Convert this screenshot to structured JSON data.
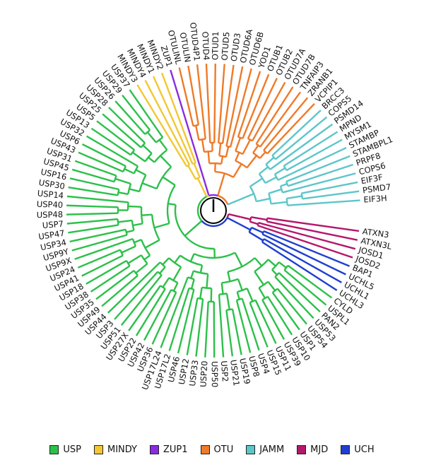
{
  "groups": [
    {
      "id": "USP",
      "label": "USP",
      "color": "#2cc04a"
    },
    {
      "id": "MINDY",
      "label": "MINDY",
      "color": "#f3c733"
    },
    {
      "id": "ZUP1",
      "label": "ZUP1",
      "color": "#8a2be2"
    },
    {
      "id": "OTU",
      "label": "OTU",
      "color": "#ef7a28"
    },
    {
      "id": "JAMM",
      "label": "JAMM",
      "color": "#5cc6c9"
    },
    {
      "id": "MJD",
      "label": "MJD",
      "color": "#b5176b"
    },
    {
      "id": "UCH",
      "label": "UCH",
      "color": "#1e3fd0"
    }
  ],
  "leaves": [
    {
      "name": "ATXN3",
      "group": "MJD"
    },
    {
      "name": "ATXN3L",
      "group": "MJD"
    },
    {
      "name": "JOSD1",
      "group": "MJD"
    },
    {
      "name": "JOSD2",
      "group": "MJD"
    },
    {
      "name": "BAP1",
      "group": "UCH"
    },
    {
      "name": "UCHL5",
      "group": "UCH"
    },
    {
      "name": "UCHL1",
      "group": "UCH"
    },
    {
      "name": "UCHL3",
      "group": "UCH"
    },
    {
      "name": "CYLD",
      "group": "USP"
    },
    {
      "name": "USPL1",
      "group": "USP"
    },
    {
      "name": "PAN2",
      "group": "USP"
    },
    {
      "name": "USP53",
      "group": "USP"
    },
    {
      "name": "USP54",
      "group": "USP"
    },
    {
      "name": "USP1",
      "group": "USP"
    },
    {
      "name": "USP10",
      "group": "USP"
    },
    {
      "name": "USP39",
      "group": "USP"
    },
    {
      "name": "USP11",
      "group": "USP"
    },
    {
      "name": "USP15",
      "group": "USP"
    },
    {
      "name": "USP4",
      "group": "USP"
    },
    {
      "name": "USP8",
      "group": "USP"
    },
    {
      "name": "USP19",
      "group": "USP"
    },
    {
      "name": "USP21",
      "group": "USP"
    },
    {
      "name": "USP2",
      "group": "USP"
    },
    {
      "name": "USP50",
      "group": "USP"
    },
    {
      "name": "USP20",
      "group": "USP"
    },
    {
      "name": "USP33",
      "group": "USP"
    },
    {
      "name": "USP12",
      "group": "USP"
    },
    {
      "name": "USP46",
      "group": "USP"
    },
    {
      "name": "USP17L2",
      "group": "USP"
    },
    {
      "name": "USP17L24",
      "group": "USP"
    },
    {
      "name": "USP36",
      "group": "USP"
    },
    {
      "name": "USP42",
      "group": "USP"
    },
    {
      "name": "USP22",
      "group": "USP"
    },
    {
      "name": "USP27X",
      "group": "USP"
    },
    {
      "name": "USP51",
      "group": "USP"
    },
    {
      "name": "USP3",
      "group": "USP"
    },
    {
      "name": "USP44",
      "group": "USP"
    },
    {
      "name": "USP49",
      "group": "USP"
    },
    {
      "name": "USP35",
      "group": "USP"
    },
    {
      "name": "USP38",
      "group": "USP"
    },
    {
      "name": "USP18",
      "group": "USP"
    },
    {
      "name": "USP41",
      "group": "USP"
    },
    {
      "name": "USP24",
      "group": "USP"
    },
    {
      "name": "USP9X",
      "group": "USP"
    },
    {
      "name": "USP9Y",
      "group": "USP"
    },
    {
      "name": "USP34",
      "group": "USP"
    },
    {
      "name": "USP47",
      "group": "USP"
    },
    {
      "name": "USP7",
      "group": "USP"
    },
    {
      "name": "USP48",
      "group": "USP"
    },
    {
      "name": "USP40",
      "group": "USP"
    },
    {
      "name": "USP14",
      "group": "USP"
    },
    {
      "name": "USP30",
      "group": "USP"
    },
    {
      "name": "USP16",
      "group": "USP"
    },
    {
      "name": "USP45",
      "group": "USP"
    },
    {
      "name": "USP31",
      "group": "USP"
    },
    {
      "name": "USP43",
      "group": "USP"
    },
    {
      "name": "USP6",
      "group": "USP"
    },
    {
      "name": "USP32",
      "group": "USP"
    },
    {
      "name": "USP13",
      "group": "USP"
    },
    {
      "name": "USP5",
      "group": "USP"
    },
    {
      "name": "USP25",
      "group": "USP"
    },
    {
      "name": "USP28",
      "group": "USP"
    },
    {
      "name": "USP26",
      "group": "USP"
    },
    {
      "name": "USP29",
      "group": "USP"
    },
    {
      "name": "USP37",
      "group": "USP"
    },
    {
      "name": "MINDY3",
      "group": "MINDY"
    },
    {
      "name": "MINDY4",
      "group": "MINDY"
    },
    {
      "name": "MINDY1",
      "group": "MINDY"
    },
    {
      "name": "MINDY2",
      "group": "MINDY"
    },
    {
      "name": "ZUP1",
      "group": "ZUP1"
    },
    {
      "name": "OTULINL",
      "group": "OTU"
    },
    {
      "name": "OTULIN",
      "group": "OTU"
    },
    {
      "name": "OTUD4P1",
      "group": "OTU"
    },
    {
      "name": "OTUD4",
      "group": "OTU"
    },
    {
      "name": "OTUD1",
      "group": "OTU"
    },
    {
      "name": "OTUD5",
      "group": "OTU"
    },
    {
      "name": "OTUD3",
      "group": "OTU"
    },
    {
      "name": "OTUD6A",
      "group": "OTU"
    },
    {
      "name": "OTUD6B",
      "group": "OTU"
    },
    {
      "name": "YOD1",
      "group": "OTU"
    },
    {
      "name": "OTUB1",
      "group": "OTU"
    },
    {
      "name": "OTUB2",
      "group": "OTU"
    },
    {
      "name": "OTUD7A",
      "group": "OTU"
    },
    {
      "name": "OTUD7B",
      "group": "OTU"
    },
    {
      "name": "TNFAIP3",
      "group": "OTU"
    },
    {
      "name": "ZRANB1",
      "group": "OTU"
    },
    {
      "name": "VCPIP1",
      "group": "OTU"
    },
    {
      "name": "BRCC3",
      "group": "JAMM"
    },
    {
      "name": "COPS5",
      "group": "JAMM"
    },
    {
      "name": "PSMD14",
      "group": "JAMM"
    },
    {
      "name": "MPND",
      "group": "JAMM"
    },
    {
      "name": "MYSM1",
      "group": "JAMM"
    },
    {
      "name": "STAMBP",
      "group": "JAMM"
    },
    {
      "name": "STAMBPL1",
      "group": "JAMM"
    },
    {
      "name": "PRPF8",
      "group": "JAMM"
    },
    {
      "name": "COPS6",
      "group": "JAMM"
    },
    {
      "name": "EIF3F",
      "group": "JAMM"
    },
    {
      "name": "PSMD7",
      "group": "JAMM"
    },
    {
      "name": "EIF3H",
      "group": "JAMM"
    }
  ]
}
